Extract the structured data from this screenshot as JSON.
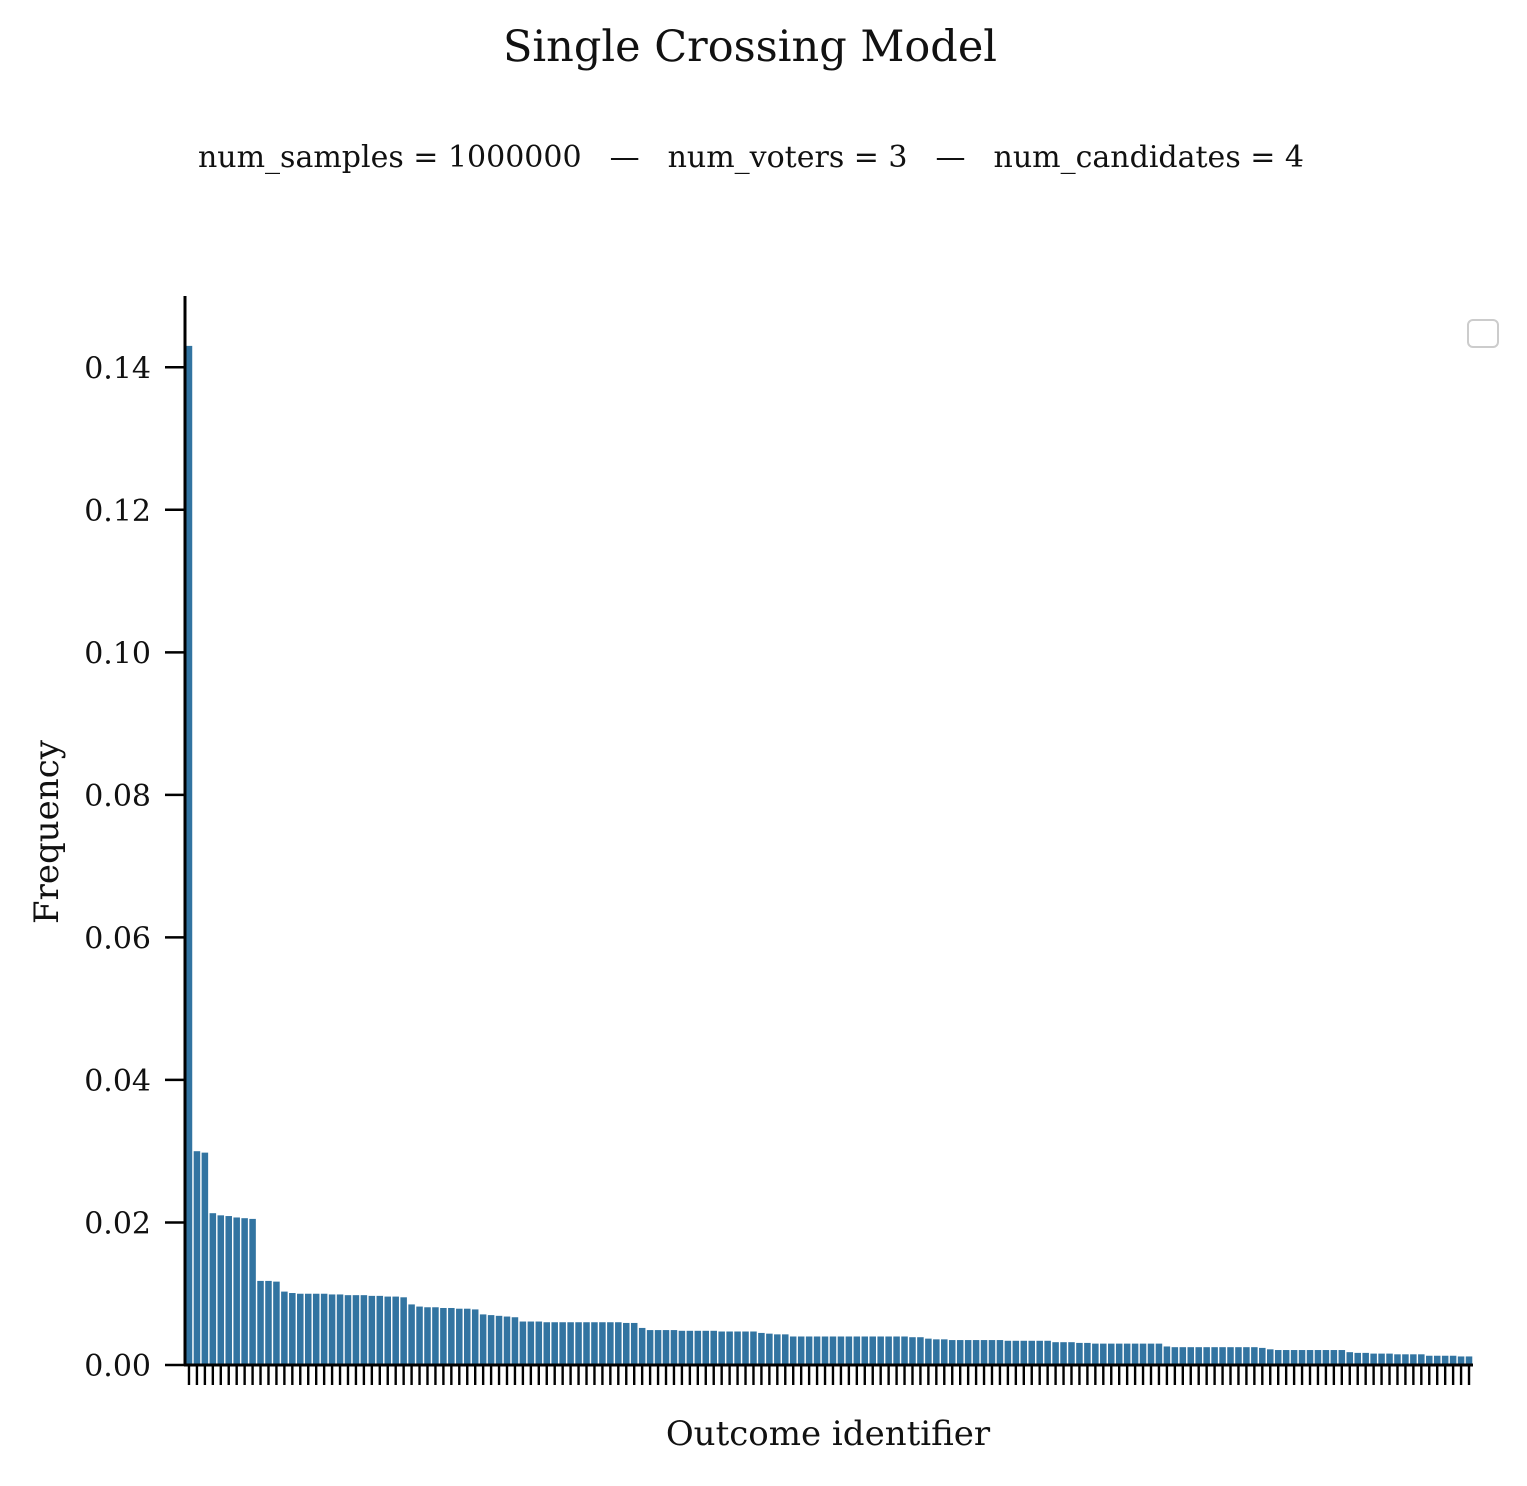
{
  "chart_data": {
    "type": "bar",
    "title": "Single Crossing Model",
    "subtitle": {
      "samples": "num_samples = 1000000",
      "voters": "num_voters = 3",
      "candidates": "num_candidates = 4",
      "separator": "—"
    },
    "xlabel": "Outcome identifier",
    "ylabel": "Frequency",
    "ylim": [
      0,
      0.15
    ],
    "yticks": [
      "0.00",
      "0.02",
      "0.04",
      "0.06",
      "0.08",
      "0.10",
      "0.12",
      "0.14"
    ],
    "grid": false,
    "legend": "top-right (empty)",
    "bar_color": "#3274a1",
    "values": [
      0.143,
      0.03,
      0.0298,
      0.0213,
      0.021,
      0.0209,
      0.0207,
      0.0206,
      0.0205,
      0.0118,
      0.0118,
      0.0117,
      0.0103,
      0.0101,
      0.01,
      0.01,
      0.01,
      0.01,
      0.0099,
      0.0099,
      0.0098,
      0.0098,
      0.0098,
      0.0097,
      0.0097,
      0.0096,
      0.0096,
      0.0095,
      0.0085,
      0.0082,
      0.0081,
      0.0081,
      0.008,
      0.008,
      0.0079,
      0.0079,
      0.0078,
      0.0071,
      0.007,
      0.0069,
      0.0068,
      0.0067,
      0.0061,
      0.0061,
      0.0061,
      0.006,
      0.006,
      0.006,
      0.006,
      0.006,
      0.006,
      0.006,
      0.006,
      0.006,
      0.006,
      0.0059,
      0.0059,
      0.0052,
      0.0049,
      0.0049,
      0.0049,
      0.0049,
      0.0048,
      0.0048,
      0.0048,
      0.0048,
      0.0048,
      0.0047,
      0.0047,
      0.0047,
      0.0047,
      0.0047,
      0.0045,
      0.0044,
      0.0043,
      0.0043,
      0.004,
      0.004,
      0.004,
      0.004,
      0.004,
      0.004,
      0.004,
      0.004,
      0.004,
      0.004,
      0.004,
      0.004,
      0.004,
      0.004,
      0.004,
      0.0039,
      0.0039,
      0.0037,
      0.0036,
      0.0036,
      0.0035,
      0.0035,
      0.0035,
      0.0035,
      0.0035,
      0.0035,
      0.0035,
      0.0034,
      0.0034,
      0.0034,
      0.0034,
      0.0034,
      0.0034,
      0.0032,
      0.0032,
      0.0032,
      0.0031,
      0.0031,
      0.003,
      0.003,
      0.003,
      0.003,
      0.003,
      0.003,
      0.003,
      0.003,
      0.003,
      0.0026,
      0.0025,
      0.0025,
      0.0025,
      0.0025,
      0.0025,
      0.0025,
      0.0025,
      0.0025,
      0.0025,
      0.0025,
      0.0025,
      0.0024,
      0.0022,
      0.0021,
      0.0021,
      0.0021,
      0.0021,
      0.0021,
      0.0021,
      0.0021,
      0.0021,
      0.0021,
      0.0018,
      0.0017,
      0.0017,
      0.0016,
      0.0016,
      0.0016,
      0.0015,
      0.0015,
      0.0015,
      0.0015,
      0.0013,
      0.0013,
      0.0013,
      0.0013,
      0.0012,
      0.0012
    ]
  }
}
